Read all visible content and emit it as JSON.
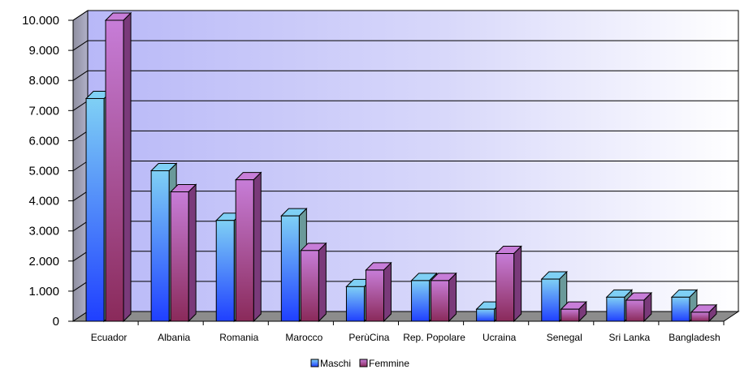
{
  "chart_data": {
    "type": "bar",
    "title": "",
    "xlabel": "",
    "ylabel": "",
    "ylim": [
      0,
      10000
    ],
    "yticks": [
      0,
      1000,
      2000,
      3000,
      4000,
      5000,
      6000,
      7000,
      8000,
      9000,
      10000
    ],
    "ytick_labels": [
      "0",
      "1.000",
      "2.000",
      "3.000",
      "4.000",
      "5.000",
      "6.000",
      "7.000",
      "8.000",
      "9.000",
      "10.000"
    ],
    "grid": true,
    "legend_position": "bottom",
    "categories": [
      "Ecuador",
      "Albania",
      "Romania",
      "Marocco",
      "PerùCina",
      "Rep. Popolare",
      "Ucraina",
      "Senegal",
      "Sri Lanka",
      "Bangladesh"
    ],
    "series": [
      {
        "name": "Maschi",
        "values": [
          7400,
          5000,
          3350,
          3500,
          1150,
          1350,
          400,
          1400,
          800,
          800
        ],
        "color": "#7fd0f5",
        "color_base": "#1f3fff",
        "color_side": "#6a9a9a"
      },
      {
        "name": "Femmine",
        "values": [
          10000,
          4300,
          4700,
          2350,
          1700,
          1350,
          2250,
          400,
          700,
          300
        ],
        "color": "#c77dd8",
        "color_base": "#8a2a5a",
        "color_side": "#7a3a7a"
      }
    ]
  }
}
